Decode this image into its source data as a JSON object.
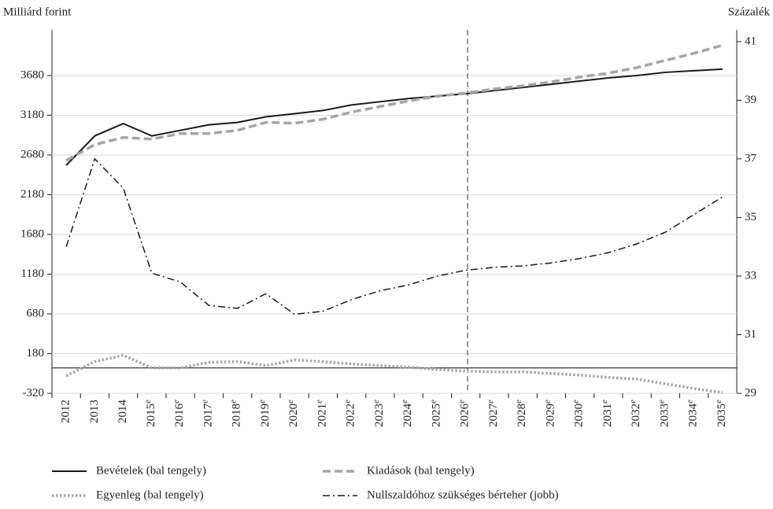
{
  "chart_data": {
    "type": "line",
    "y_label": "Milliárd forint",
    "y2_label": "Százalék",
    "categories": [
      "2012",
      "2013",
      "2014",
      "2015e",
      "2016e",
      "2017e",
      "2018e",
      "2019e",
      "2020e",
      "2021e",
      "2022e",
      "2023e",
      "2024e",
      "2025e",
      "2026e",
      "2027e",
      "2028e",
      "2029e",
      "2030e",
      "2031e",
      "2032e",
      "2033e",
      "2034e",
      "2035e"
    ],
    "ylim": [
      -320,
      4254
    ],
    "yticks": [
      -320,
      180,
      680,
      1180,
      1680,
      2180,
      2680,
      3180,
      3680
    ],
    "y2lim": [
      29,
      41.4
    ],
    "y2ticks": [
      29,
      31,
      33,
      35,
      37,
      39,
      41
    ],
    "grid": true,
    "series": [
      {
        "name": "Bevételek (bal tengely)",
        "color": "#1a1a1a",
        "values": [
          2550,
          2920,
          3075,
          2920,
          2990,
          3060,
          3090,
          3160,
          3200,
          3240,
          3310,
          3350,
          3390,
          3420,
          3450,
          3490,
          3530,
          3570,
          3610,
          3650,
          3680,
          3720,
          3740,
          3760
        ]
      },
      {
        "name": "Kiadások (bal tengely)",
        "color": "#a6a6a6",
        "values": [
          2610,
          2810,
          2900,
          2880,
          2950,
          2950,
          2990,
          3090,
          3080,
          3130,
          3220,
          3290,
          3360,
          3420,
          3460,
          3510,
          3550,
          3600,
          3660,
          3710,
          3780,
          3870,
          3960,
          4060
        ]
      },
      {
        "name": "Egyenleg (bal tengely)",
        "color": "#a6a6a6",
        "values": [
          -100,
          80,
          160,
          0,
          0,
          70,
          80,
          30,
          100,
          80,
          50,
          30,
          10,
          -20,
          -40,
          -50,
          -50,
          -70,
          -90,
          -120,
          -140,
          -200,
          -260,
          -310
        ]
      },
      {
        "name": "Nullszaldóhoz szükséges bérteher (jobb)",
        "color": "#1a1a1a",
        "axis": "y2",
        "values": [
          34,
          37,
          36,
          33.1,
          32.8,
          32,
          31.9,
          32.4,
          31.7,
          31.8,
          32.2,
          32.5,
          32.7,
          33,
          33.2,
          33.3,
          33.35,
          33.45,
          33.6,
          33.8,
          34.1,
          34.5,
          35.1,
          35.7
        ]
      }
    ]
  }
}
